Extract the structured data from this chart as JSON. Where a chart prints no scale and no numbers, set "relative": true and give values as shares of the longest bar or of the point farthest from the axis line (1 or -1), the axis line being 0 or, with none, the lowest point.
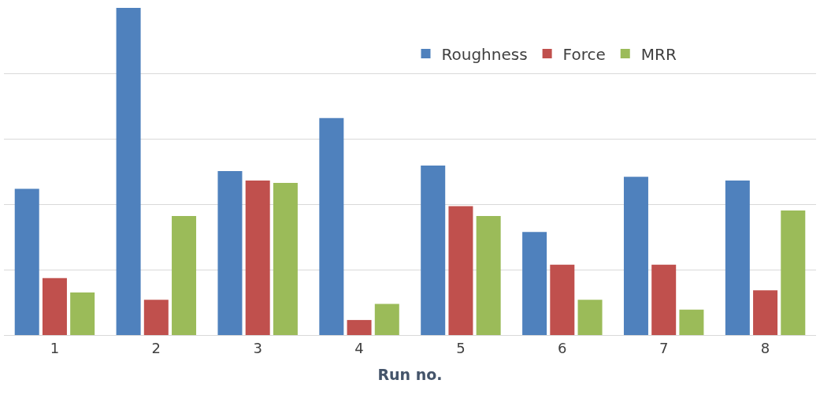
{
  "chart_data": {
    "type": "bar",
    "relative": true,
    "xlabel": "Run no.",
    "categories": [
      "1",
      "2",
      "3",
      "4",
      "5",
      "6",
      "7",
      "8"
    ],
    "series": [
      {
        "name": "Roughness",
        "color": "#4f81bd",
        "values": [
          0.447,
          1,
          0.501,
          0.663,
          0.518,
          0.315,
          0.484,
          0.472
        ]
      },
      {
        "name": "Force",
        "color": "#c0504d",
        "values": [
          0.174,
          0.108,
          0.472,
          0.046,
          0.394,
          0.215,
          0.215,
          0.137
        ]
      },
      {
        "name": "MRR",
        "color": "#9bbb59",
        "values": [
          0.13,
          0.364,
          0.465,
          0.095,
          0.364,
          0.108,
          0.078,
          0.381
        ]
      }
    ],
    "grid": "y",
    "legend": "top right"
  }
}
